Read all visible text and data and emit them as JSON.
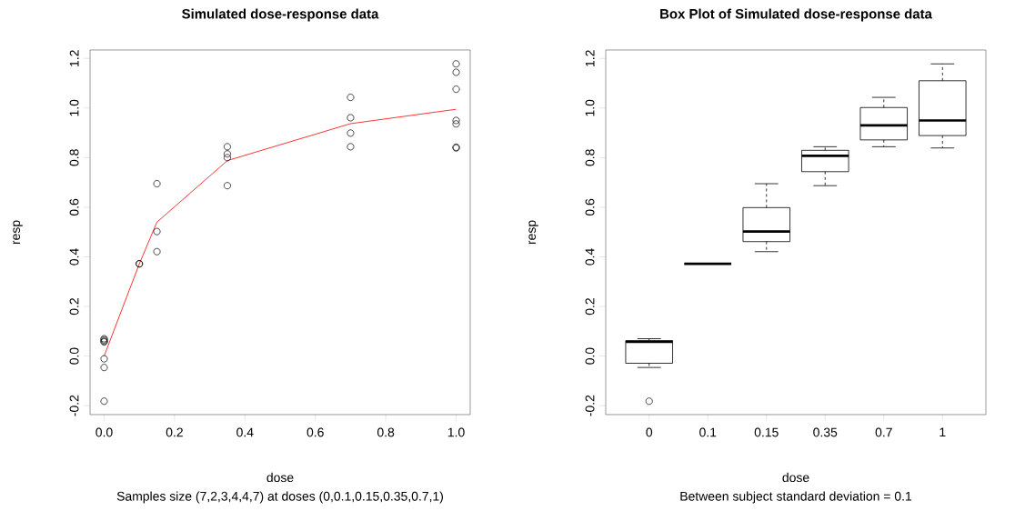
{
  "chart_data": [
    {
      "type": "scatter",
      "title": "Simulated dose-response data",
      "xlabel": "dose",
      "ylabel": "resp",
      "annotations": [
        "Samples size (7,2,3,4,4,7) at doses (0,0.1,0.15,0.35,0.7,1)"
      ],
      "xlim": [
        -0.04,
        1.04
      ],
      "ylim": [
        -0.236,
        1.234
      ],
      "marker": "circle",
      "xticks": [
        {
          "value": 0,
          "label": "0.0"
        },
        {
          "value": 0.2,
          "label": "0.2"
        },
        {
          "value": 0.4,
          "label": "0.4"
        },
        {
          "value": 0.6,
          "label": "0.6"
        },
        {
          "value": 0.8,
          "label": "0.8"
        },
        {
          "value": 1,
          "label": "1.0"
        }
      ],
      "yticks": [
        {
          "value": -0.2,
          "label": "-0.2"
        },
        {
          "value": 0,
          "label": "0.0"
        },
        {
          "value": 0.2,
          "label": "0.2"
        },
        {
          "value": 0.4,
          "label": "0.4"
        },
        {
          "value": 0.6,
          "label": "0.6"
        },
        {
          "value": 0.8,
          "label": "0.8"
        },
        {
          "value": 1,
          "label": "1.0"
        },
        {
          "value": 1.2,
          "label": "1.2"
        }
      ],
      "series": [
        {
          "type": "scatter",
          "color": "#000000",
          "x": [
            0,
            0,
            0,
            0,
            0,
            0,
            0,
            0.1,
            0.1,
            0.15,
            0.15,
            0.15,
            0.35,
            0.35,
            0.35,
            0.35,
            0.7,
            0.7,
            0.7,
            0.7,
            1,
            1,
            1,
            1,
            1,
            1,
            1
          ],
          "values": [
            0.07,
            0.065,
            0.06,
            0.057,
            -0.011,
            -0.046,
            -0.182,
            0.372,
            0.372,
            0.695,
            0.502,
            0.421,
            0.844,
            0.815,
            0.8,
            0.687,
            1.043,
            0.961,
            0.899,
            0.844,
            1.178,
            1.144,
            1.076,
            0.95,
            0.936,
            0.842,
            0.839
          ]
        },
        {
          "type": "line",
          "color": "#ff0000",
          "marker": "none",
          "x": [
            0,
            0.1,
            0.15,
            0.35,
            0.7,
            1
          ],
          "values": [
            0,
            0.372,
            0.54,
            0.788,
            0.937,
            0.995
          ]
        }
      ]
    },
    {
      "type": "box",
      "title": "Box Plot of Simulated dose-response data",
      "xlabel": "dose",
      "ylabel": "resp",
      "annotations": [
        "Between subject standard deviation = 0.1"
      ],
      "categories": [
        "0",
        "0.1",
        "0.15",
        "0.35",
        "0.7",
        "1"
      ],
      "ylim": [
        -0.236,
        1.234
      ],
      "yticks": [
        {
          "value": -0.2,
          "label": "-0.2"
        },
        {
          "value": 0,
          "label": "0.0"
        },
        {
          "value": 0.2,
          "label": "0.2"
        },
        {
          "value": 0.4,
          "label": "0.4"
        },
        {
          "value": 0.6,
          "label": "0.6"
        },
        {
          "value": 0.8,
          "label": "0.8"
        },
        {
          "value": 1,
          "label": "1.0"
        },
        {
          "value": 1.2,
          "label": "1.2"
        }
      ],
      "boxes": [
        {
          "low": -0.046,
          "q1": -0.029,
          "median": 0.057,
          "q3": 0.0625,
          "high": 0.07,
          "outliers": [
            -0.182
          ]
        },
        {
          "low": 0.372,
          "q1": 0.372,
          "median": 0.372,
          "q3": 0.372,
          "high": 0.372
        },
        {
          "low": 0.421,
          "q1": 0.4615,
          "median": 0.502,
          "q3": 0.5985,
          "high": 0.695
        },
        {
          "low": 0.687,
          "q1": 0.7435,
          "median": 0.8075,
          "q3": 0.8295,
          "high": 0.844
        },
        {
          "low": 0.844,
          "q1": 0.8715,
          "median": 0.93,
          "q3": 1.002,
          "high": 1.043
        },
        {
          "low": 0.839,
          "q1": 0.889,
          "median": 0.95,
          "q3": 1.11,
          "high": 1.178
        }
      ]
    }
  ]
}
